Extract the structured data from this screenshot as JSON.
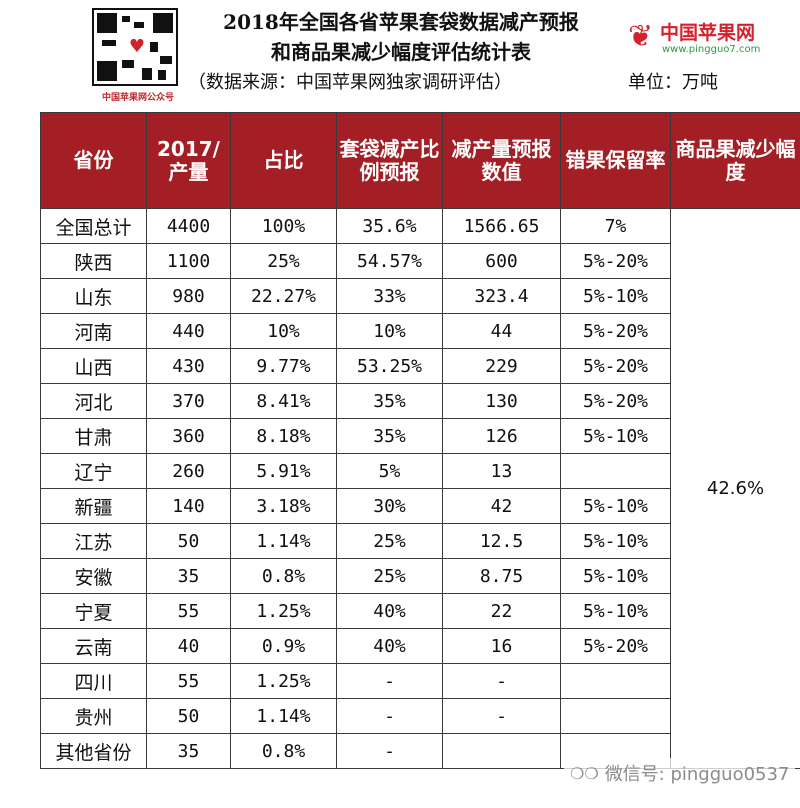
{
  "header": {
    "title_line1": "2018年全国各省苹果套袋数据减产预报",
    "title_line2": "和商品果减少幅度评估统计表",
    "source": "（数据来源：中国苹果网独家调研评估）",
    "unit": "单位：万吨",
    "qr_caption": "中国苹果网公众号",
    "logo_name": "中国苹果网",
    "logo_url": "www.pingguo7.com"
  },
  "table": {
    "columns": [
      "省份",
      "2017/产量",
      "占比",
      "套袋减产比例预报",
      "减产量预报数值",
      "错果保留率",
      "商品果减少幅度"
    ],
    "rows": [
      {
        "province": "全国总计",
        "output": "4400",
        "share": "100%",
        "bag_cut": "35.6%",
        "cut_amount": "1566.65",
        "retention": "7%"
      },
      {
        "province": "陕西",
        "output": "1100",
        "share": "25%",
        "bag_cut": "54.57%",
        "cut_amount": "600",
        "retention": "5%-20%"
      },
      {
        "province": "山东",
        "output": "980",
        "share": "22.27%",
        "bag_cut": "33%",
        "cut_amount": "323.4",
        "retention": "5%-10%"
      },
      {
        "province": "河南",
        "output": "440",
        "share": "10%",
        "bag_cut": "10%",
        "cut_amount": "44",
        "retention": "5%-20%"
      },
      {
        "province": "山西",
        "output": "430",
        "share": "9.77%",
        "bag_cut": "53.25%",
        "cut_amount": "229",
        "retention": "5%-20%"
      },
      {
        "province": "河北",
        "output": "370",
        "share": "8.41%",
        "bag_cut": "35%",
        "cut_amount": "130",
        "retention": "5%-20%"
      },
      {
        "province": "甘肃",
        "output": "360",
        "share": "8.18%",
        "bag_cut": "35%",
        "cut_amount": "126",
        "retention": "5%-10%"
      },
      {
        "province": "辽宁",
        "output": "260",
        "share": "5.91%",
        "bag_cut": "5%",
        "cut_amount": "13",
        "retention": ""
      },
      {
        "province": "新疆",
        "output": "140",
        "share": "3.18%",
        "bag_cut": "30%",
        "cut_amount": "42",
        "retention": "5%-10%"
      },
      {
        "province": "江苏",
        "output": "50",
        "share": "1.14%",
        "bag_cut": "25%",
        "cut_amount": "12.5",
        "retention": "5%-10%"
      },
      {
        "province": "安徽",
        "output": "35",
        "share": "0.8%",
        "bag_cut": "25%",
        "cut_amount": "8.75",
        "retention": "5%-10%"
      },
      {
        "province": "宁夏",
        "output": "55",
        "share": "1.25%",
        "bag_cut": "40%",
        "cut_amount": "22",
        "retention": "5%-10%"
      },
      {
        "province": "云南",
        "output": "40",
        "share": "0.9%",
        "bag_cut": "40%",
        "cut_amount": "16",
        "retention": "5%-20%"
      },
      {
        "province": "四川",
        "output": "55",
        "share": "1.25%",
        "bag_cut": "-",
        "cut_amount": "-",
        "retention": ""
      },
      {
        "province": "贵州",
        "output": "50",
        "share": "1.14%",
        "bag_cut": "-",
        "cut_amount": "-",
        "retention": ""
      },
      {
        "province": "其他省份",
        "output": "35",
        "share": "0.8%",
        "bag_cut": "-",
        "cut_amount": "",
        "retention": ""
      }
    ],
    "merged_reduction": "42.6%"
  },
  "watermark": {
    "icon": "wechat-icon",
    "text": "微信号: pingguo0537"
  },
  "colors": {
    "header_bg": "#a31e25",
    "brand_red": "#d2222d",
    "brand_green": "#2a9b3c"
  }
}
